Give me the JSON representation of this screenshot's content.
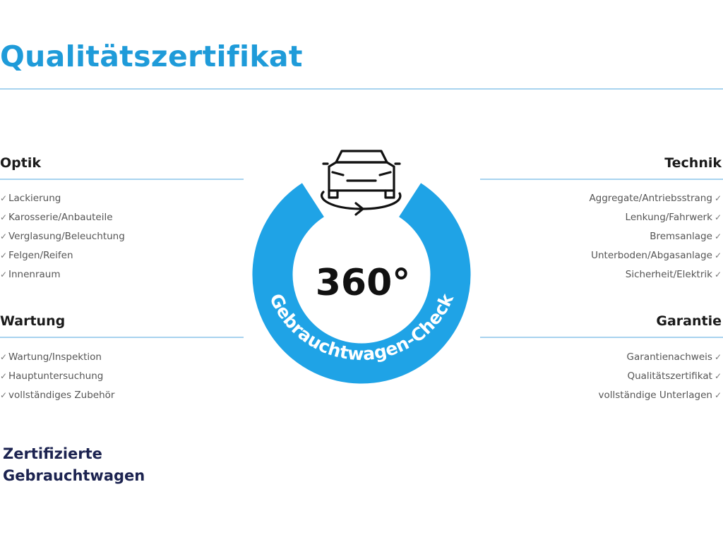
{
  "title": "Qualitätszertifikat",
  "colors": {
    "accent": "#1fa3e6",
    "title": "#1f9bd9",
    "rule": "#a8d3ef",
    "brand": "#1c2350"
  },
  "badge": {
    "number": "360°",
    "ring_text": "Gebrauchtwagen-Check",
    "icon": "car-360-icon"
  },
  "sections": {
    "optik": {
      "heading": "Optik",
      "items": [
        "Lackierung",
        "Karosserie/Anbauteile",
        "Verglasung/Beleuchtung",
        "Felgen/Reifen",
        "Innenraum"
      ]
    },
    "wartung": {
      "heading": "Wartung",
      "items": [
        "Wartung/Inspektion",
        "Hauptuntersuchung",
        "vollständiges Zubehör"
      ]
    },
    "technik": {
      "heading": "Technik",
      "items": [
        "Aggregate/Antriebsstrang",
        "Lenkung/Fahrwerk",
        "Bremsanlage",
        "Unterboden/Abgasanlage",
        "Sicherheit/Elektrik"
      ]
    },
    "garantie": {
      "heading": "Garantie",
      "items": [
        "Garantienachweis",
        "Qualitätszertifikat",
        "vollständige Unterlagen"
      ]
    }
  },
  "check_glyph": "✓",
  "brand": {
    "line1": "Zertifizierte",
    "line2": "Gebrauchtwagen"
  }
}
